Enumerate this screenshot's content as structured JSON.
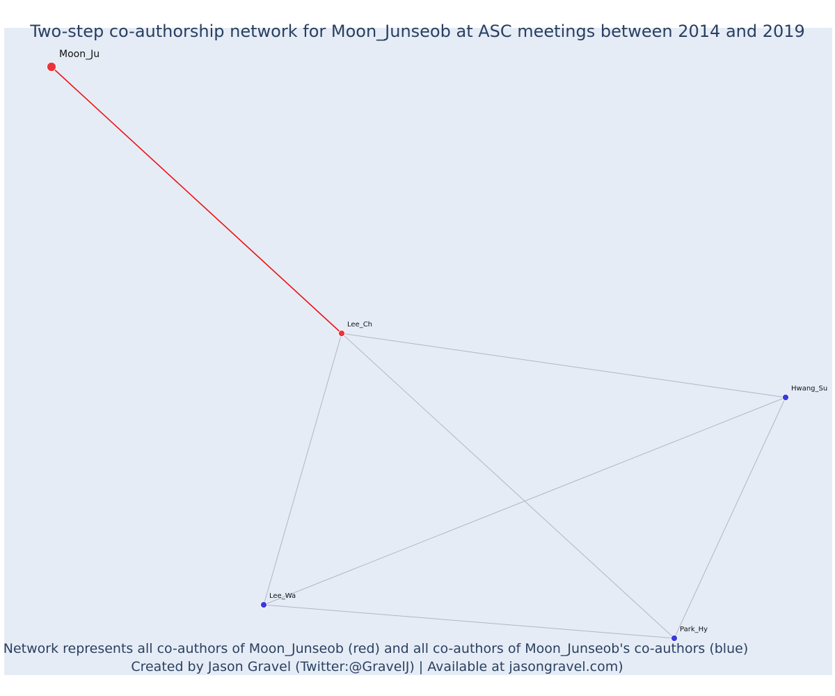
{
  "title": "Two-step co-authorship network for Moon_Junseob at ASC meetings between 2014 and 2019",
  "caption_line1": "Network represents all co-authors of Moon_Junseob (red) and all co-authors of Moon_Junseob's co-authors (blue)",
  "caption_line2": "Created by Jason Gravel (Twitter:@GravelJ) | Available at jasongravel.com)",
  "colors": {
    "background": "#e5ecf6",
    "focal_edge": "#ee1111",
    "other_edge": "#b4b4c4",
    "red_node": "#e8343a",
    "blue_node": "#3a3adf",
    "node_stroke": "#ffffff"
  },
  "nodes": [
    {
      "id": "moon",
      "label": "Moon_Ju",
      "group": "focal"
    },
    {
      "id": "leech",
      "label": "Lee_Ch",
      "group": "red"
    },
    {
      "id": "hwang",
      "label": "Hwang_Su",
      "group": "blue"
    },
    {
      "id": "leewa",
      "label": "Lee_Wa",
      "group": "blue"
    },
    {
      "id": "parkhy",
      "label": "Park_Hy",
      "group": "blue"
    }
  ],
  "edges": [
    {
      "source": "moon",
      "target": "leech",
      "type": "focal"
    },
    {
      "source": "leech",
      "target": "hwang",
      "type": "other"
    },
    {
      "source": "leech",
      "target": "leewa",
      "type": "other"
    },
    {
      "source": "leech",
      "target": "parkhy",
      "type": "other"
    },
    {
      "source": "hwang",
      "target": "leewa",
      "type": "other"
    },
    {
      "source": "hwang",
      "target": "parkhy",
      "type": "other"
    },
    {
      "source": "leewa",
      "target": "parkhy",
      "type": "other"
    }
  ]
}
